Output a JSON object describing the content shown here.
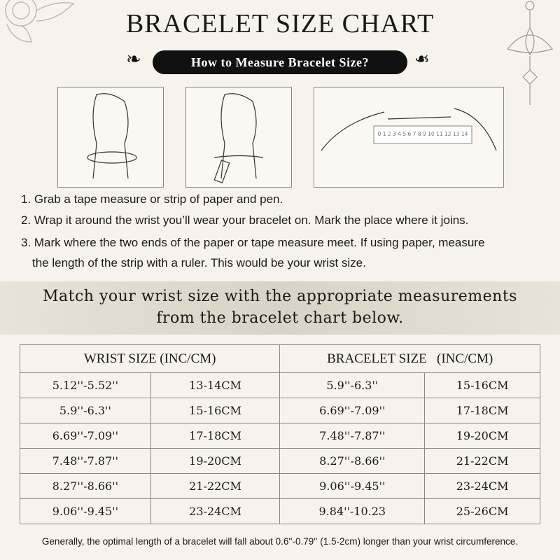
{
  "title": "BRACELET SIZE CHART",
  "subtitle": "How to Measure Bracelet Size?",
  "ruler_numbers": "0 1 2 3 4 5 6 7 8 9 10 11 12 13 14",
  "steps": [
    "1. Grab a tape measure or strip of paper and pen.",
    "2. Wrap it around the wrist you’ll wear your bracelet on. Mark the place where it joins.",
    "3. Mark where the two ends of the paper or tape measure meet. If using paper, measure",
    "the length of the strip with a ruler. This would be your wrist size."
  ],
  "band": [
    "Match your wrist size with the appropriate measurements",
    "from the bracelet chart below."
  ],
  "table": {
    "headers": [
      "WRIST SIZE (INC/CM)",
      "BRACELET SIZE   (INC/CM)"
    ],
    "rows": [
      [
        "5.12''-5.52''",
        "13-14CM",
        "5.9''-6.3''",
        "15-16CM"
      ],
      [
        "5.9''-6.3''",
        "15-16CM",
        "6.69''-7.09''",
        "17-18CM"
      ],
      [
        "6.69''-7.09''",
        "17-18CM",
        "7.48''-7.87''",
        "19-20CM"
      ],
      [
        "7.48''-7.87''",
        "19-20CM",
        "8.27''-8.66''",
        "21-22CM"
      ],
      [
        "8.27''-8.66''",
        "21-22CM",
        "9.06''-9.45''",
        "23-24CM"
      ],
      [
        "9.06''-9.45''",
        "23-24CM",
        "9.84''-10.23",
        "25-26CM"
      ]
    ]
  },
  "note": "Generally, the optimal length of a bracelet will fall about 0.6''-0.79'' (1.5-2cm) longer than your wrist circumference."
}
